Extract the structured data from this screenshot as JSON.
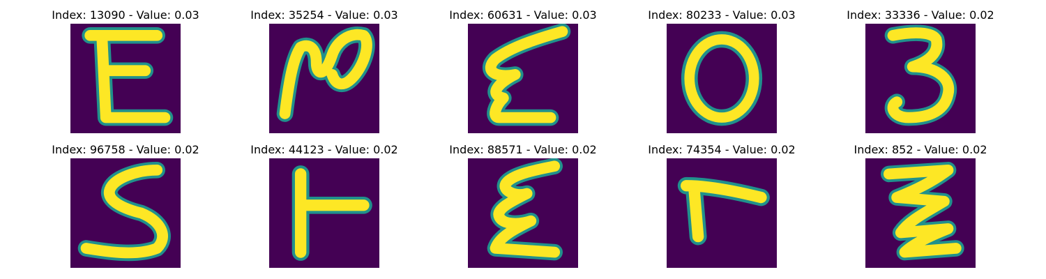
{
  "colors": {
    "background": "#440154",
    "stroke": "#fde725",
    "edge": "#21918c"
  },
  "panels": [
    {
      "title": "Index: 13090 - Value: 0.03",
      "glyph": "E"
    },
    {
      "title": "Index: 35254 - Value: 0.03",
      "glyph": "N-ish script"
    },
    {
      "title": "Index: 60631 - Value: 0.03",
      "glyph": "E-ish script"
    },
    {
      "title": "Index: 80233 - Value: 0.03",
      "glyph": "O"
    },
    {
      "title": "Index: 33336 - Value: 0.02",
      "glyph": "3"
    },
    {
      "title": "Index: 96758 - Value: 0.02",
      "glyph": "S"
    },
    {
      "title": "Index: 44123 - Value: 0.02",
      "glyph": "T-rotated"
    },
    {
      "title": "Index: 88571 - Value: 0.02",
      "glyph": "E-ish script"
    },
    {
      "title": "Index: 74354 - Value: 0.02",
      "glyph": "r"
    },
    {
      "title": "Index: 852 - Value: 0.02",
      "glyph": "Z-ish script"
    }
  ]
}
